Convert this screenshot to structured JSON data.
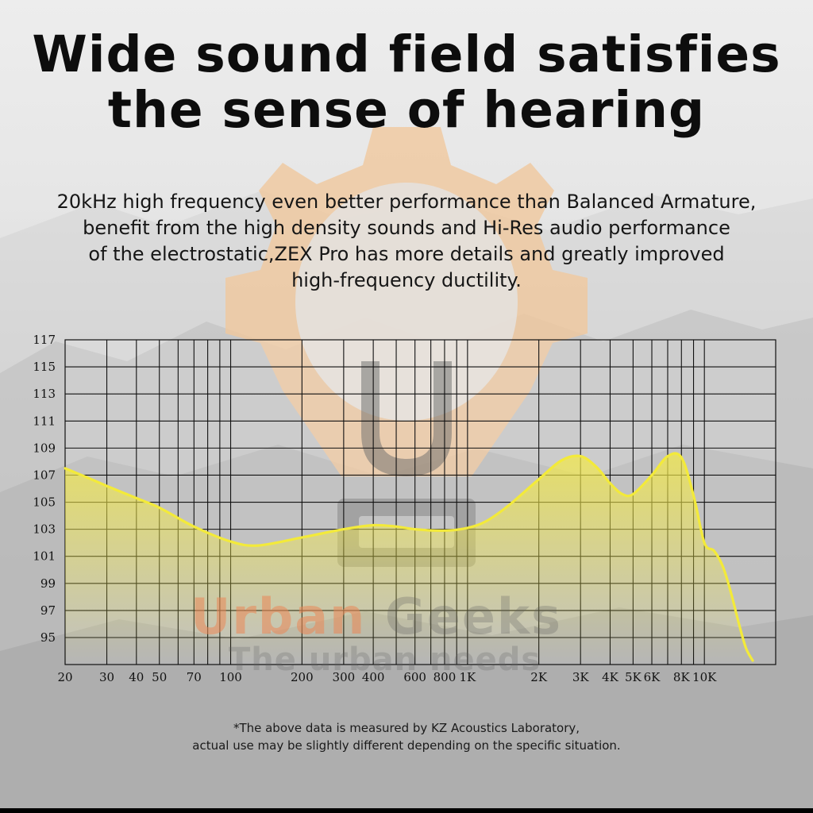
{
  "headline": {
    "line1": "Wide sound field satisfies",
    "line2": "the sense of hearing"
  },
  "description": {
    "lines": [
      "20kHz high frequency even better performance than Balanced Armature,",
      "benefit from the high density sounds and Hi-Res audio performance",
      "of the electrostatic,ZEX Pro has more details and greatly improved",
      "high-frequency ductility."
    ]
  },
  "watermark": {
    "brand_part1": "Urban",
    "brand_part2": "Geeks",
    "tagline": "The urban needs",
    "logo_letter": "U",
    "logo_color": "#f0c89e"
  },
  "footnote": {
    "line1": "*The above data is measured by KZ Acoustics Laboratory,",
    "line2": "actual use may be slightly different depending on the specific situation."
  },
  "colors": {
    "curve": "#f3ea3a",
    "fill": "#f2e84a",
    "grid": "#111111"
  },
  "chart_data": {
    "type": "area",
    "xscale": "log",
    "xlim": [
      20,
      20000
    ],
    "ylim": [
      93,
      117
    ],
    "yticks": [
      95,
      97,
      99,
      101,
      103,
      105,
      107,
      109,
      111,
      113,
      115,
      117
    ],
    "xtick_values": [
      20,
      30,
      40,
      50,
      70,
      100,
      200,
      300,
      400,
      600,
      800,
      1000,
      2000,
      3000,
      4000,
      5000,
      6000,
      8000,
      10000
    ],
    "xtick_labels": [
      "20",
      "30",
      "40",
      "50",
      "70",
      "100",
      "200",
      "300",
      "400",
      "600",
      "800",
      "1K",
      "2K",
      "3K",
      "4K",
      "5K",
      "6K",
      "8K",
      "10K"
    ],
    "grid": true,
    "series": [
      {
        "x": [
          20,
          25,
          30,
          40,
          50,
          70,
          100,
          130,
          200,
          300,
          400,
          500,
          600,
          800,
          1000,
          1200,
          1500,
          2000,
          2500,
          3000,
          3500,
          4000,
          4500,
          5000,
          6000,
          7000,
          8000,
          9000,
          10000,
          11000,
          12000,
          13000,
          14000,
          15000,
          16000
        ],
        "y": [
          107.5,
          106.8,
          106.2,
          105.3,
          104.6,
          103.2,
          102.1,
          101.8,
          102.4,
          103.0,
          103.3,
          103.2,
          103.0,
          102.9,
          103.1,
          103.6,
          104.8,
          106.7,
          108.1,
          108.4,
          107.6,
          106.4,
          105.6,
          105.6,
          107.0,
          108.4,
          108.3,
          105.5,
          102.0,
          101.4,
          100.2,
          98.2,
          96.0,
          94.2,
          93.3
        ]
      }
    ]
  }
}
